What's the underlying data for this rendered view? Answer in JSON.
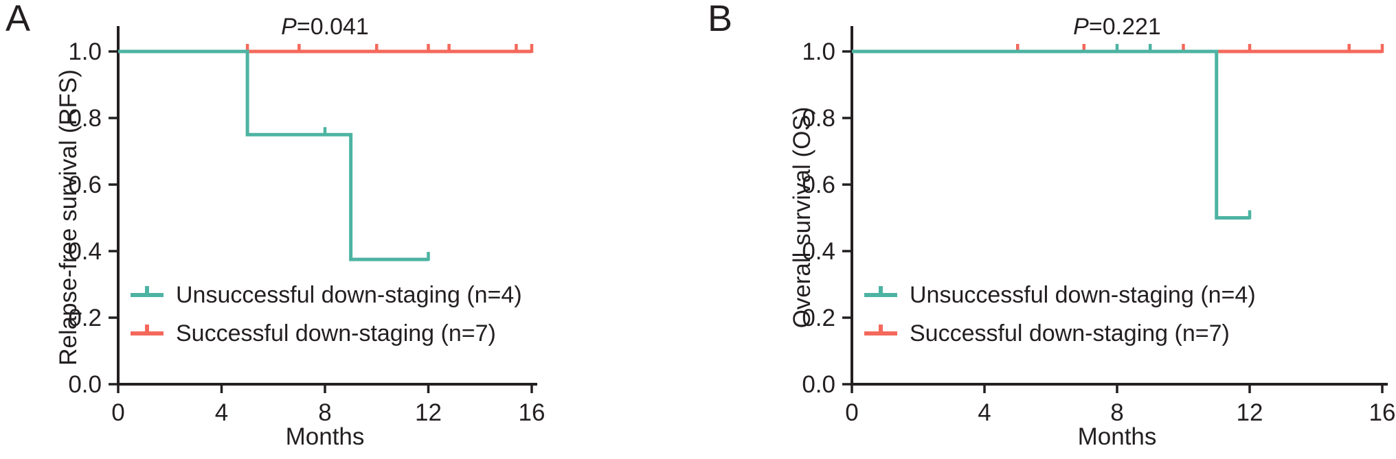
{
  "figure": {
    "background": "#ffffff",
    "colors": {
      "teal": "#4DB3A2",
      "salmon": "#F4695C",
      "axis": "#231F20",
      "text": "#231F20"
    }
  },
  "chart_data": [
    {
      "type": "line",
      "subtype": "kaplan-meier-step",
      "panel_letter": "A",
      "p_italic": "P",
      "p_rest": "=0.041",
      "title": "P=0.041",
      "ylabel": "Relapse-free survival (RFS)",
      "xlabel": "Months",
      "xlim": [
        0,
        16
      ],
      "ylim": [
        0.0,
        1.0
      ],
      "xticks": [
        0,
        4,
        8,
        12,
        16
      ],
      "yticks": [
        1.0,
        0.8,
        0.6,
        0.4,
        0.2,
        0.0
      ],
      "grid": false,
      "legend_position": "lower-left-inside",
      "series": [
        {
          "name": "Unsuccessful down-staging (n=4)",
          "color_key": "teal",
          "steps": [
            [
              0,
              1.0
            ],
            [
              5,
              1.0
            ],
            [
              5,
              0.75
            ],
            [
              9,
              0.75
            ],
            [
              9,
              0.375
            ],
            [
              12,
              0.375
            ]
          ],
          "censor_marks": [
            [
              8,
              0.75
            ],
            [
              12,
              0.375
            ]
          ]
        },
        {
          "name": "Successful down-staging (n=7)",
          "color_key": "salmon",
          "steps": [
            [
              0,
              1.0
            ],
            [
              16,
              1.0
            ]
          ],
          "censor_marks": [
            [
              5,
              1.0
            ],
            [
              7,
              1.0
            ],
            [
              10,
              1.0
            ],
            [
              12,
              1.0
            ],
            [
              12.8,
              1.0
            ],
            [
              15.4,
              1.0
            ],
            [
              16,
              1.0
            ]
          ]
        }
      ]
    },
    {
      "type": "line",
      "subtype": "kaplan-meier-step",
      "panel_letter": "B",
      "p_italic": "P",
      "p_rest": "=0.221",
      "title": "P=0.221",
      "ylabel": "Overall survival (OS)",
      "xlabel": "Months",
      "xlim": [
        0,
        16
      ],
      "ylim": [
        0.0,
        1.0
      ],
      "xticks": [
        0,
        4,
        8,
        12,
        16
      ],
      "yticks": [
        1.0,
        0.8,
        0.6,
        0.4,
        0.2,
        0.0
      ],
      "grid": false,
      "legend_position": "lower-left-inside",
      "series": [
        {
          "name": "Unsuccessful down-staging (n=4)",
          "color_key": "teal",
          "steps": [
            [
              0,
              1.0
            ],
            [
              11,
              1.0
            ],
            [
              11,
              0.5
            ],
            [
              12,
              0.5
            ]
          ],
          "censor_marks": [
            [
              8,
              1.0
            ],
            [
              9,
              1.0
            ],
            [
              12,
              0.5
            ]
          ]
        },
        {
          "name": "Successful down-staging (n=7)",
          "color_key": "salmon",
          "steps": [
            [
              0,
              1.0
            ],
            [
              16,
              1.0
            ]
          ],
          "censor_marks": [
            [
              5,
              1.0
            ],
            [
              7,
              1.0
            ],
            [
              10,
              1.0
            ],
            [
              12,
              1.0
            ],
            [
              15,
              1.0
            ],
            [
              16,
              1.0
            ]
          ]
        }
      ]
    }
  ]
}
